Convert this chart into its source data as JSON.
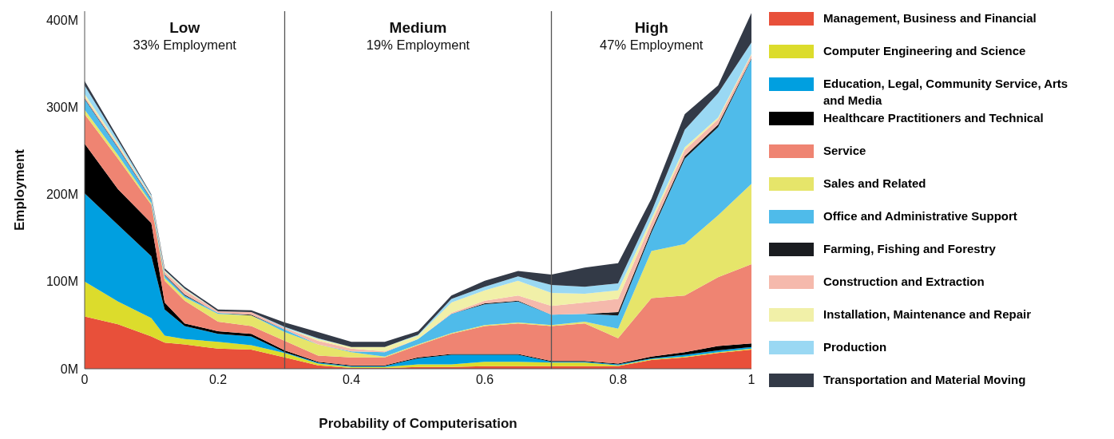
{
  "chart_data": {
    "type": "area",
    "stacked": true,
    "xlabel": "Probability of Computerisation",
    "ylabel": "Employment",
    "x": [
      0,
      0.05,
      0.1,
      0.12,
      0.15,
      0.2,
      0.25,
      0.3,
      0.35,
      0.4,
      0.45,
      0.5,
      0.55,
      0.6,
      0.65,
      0.7,
      0.75,
      0.8,
      0.85,
      0.9,
      0.95,
      1
    ],
    "series": [
      {
        "name": "Management, Business and Financial",
        "color": "#e8503a",
        "values": [
          60,
          51,
          37,
          30,
          28,
          23,
          22,
          13,
          4,
          1,
          1,
          2,
          2,
          3,
          3,
          3,
          3,
          3,
          10,
          13,
          18,
          22
        ]
      },
      {
        "name": "Computer Engineering and Science",
        "color": "#dcdc2c",
        "values": [
          40,
          26,
          21,
          8,
          6,
          8,
          5,
          5,
          2,
          1,
          1,
          3,
          3,
          5,
          5,
          4,
          4,
          1,
          1,
          1,
          1,
          1
        ]
      },
      {
        "name": "Education, Legal, Community Service, Arts and Media",
        "color": "#009fe0",
        "values": [
          101,
          88,
          71,
          30,
          15,
          9,
          10,
          1,
          1,
          1,
          1,
          7,
          11,
          8,
          8,
          1,
          1,
          1,
          1,
          2,
          2,
          2
        ]
      },
      {
        "name": "Healthcare Practitioners and Technical",
        "color": "#000000",
        "values": [
          57,
          41,
          38,
          8,
          3,
          3,
          3,
          2,
          1,
          1,
          1,
          1,
          1,
          1,
          1,
          1,
          1,
          1,
          2,
          3,
          5,
          4
        ]
      },
      {
        "name": "Service",
        "color": "#ef8472",
        "values": [
          34,
          35,
          21,
          25,
          26,
          11,
          9,
          11,
          7,
          9,
          9,
          14,
          23,
          32,
          35,
          40,
          43,
          29,
          67,
          65,
          79,
          91
        ]
      },
      {
        "name": "Sales and Related",
        "color": "#e6e56a",
        "values": [
          5,
          4,
          2,
          3,
          4,
          9,
          12,
          10,
          13,
          6,
          1,
          1,
          1,
          1,
          1,
          1,
          2,
          11,
          54,
          59,
          71,
          92
        ]
      },
      {
        "name": "Office and Administrative Support",
        "color": "#4fbbea",
        "values": [
          12,
          8,
          4,
          3,
          2,
          1,
          0,
          3,
          0,
          1,
          5,
          6,
          22,
          24,
          24,
          12,
          9,
          15,
          21,
          98,
          101,
          143
        ]
      },
      {
        "name": "Farming, Fishing and Forestry",
        "color": "#1a1c20",
        "values": [
          1,
          1,
          1,
          1,
          1,
          0,
          1,
          0,
          0,
          0,
          0,
          0,
          0,
          1,
          1,
          0,
          0,
          4,
          3,
          3,
          3,
          1
        ]
      },
      {
        "name": "Construction and Extraction",
        "color": "#f5b9ac",
        "values": [
          2,
          2,
          1,
          3,
          5,
          2,
          3,
          2,
          4,
          3,
          1,
          0,
          1,
          3,
          6,
          10,
          13,
          15,
          9,
          7,
          6,
          4
        ]
      },
      {
        "name": "Installation, Maintenance and Repair",
        "color": "#f1f0a8",
        "values": [
          3,
          2,
          1,
          1,
          1,
          0,
          0,
          0,
          2,
          2,
          5,
          4,
          12,
          12,
          17,
          15,
          10,
          10,
          4,
          3,
          2,
          1
        ]
      },
      {
        "name": "Production",
        "color": "#9ad8f3",
        "values": [
          10,
          4,
          2,
          1,
          1,
          0,
          0,
          1,
          1,
          0,
          0,
          1,
          4,
          4,
          5,
          9,
          8,
          8,
          8,
          20,
          28,
          13
        ]
      },
      {
        "name": "Transportation and Material Moving",
        "color": "#333a47",
        "values": [
          5,
          3,
          1,
          2,
          2,
          2,
          2,
          5,
          7,
          6,
          6,
          4,
          4,
          7,
          6,
          12,
          22,
          23,
          15,
          18,
          9,
          34
        ]
      }
    ],
    "xlim": [
      0,
      1
    ],
    "xticks": [
      0,
      0.2,
      0.4,
      0.6,
      0.8,
      1
    ],
    "ylim": [
      0,
      410
    ],
    "yticks": [
      {
        "value": 0,
        "label": "0M"
      },
      {
        "value": 100,
        "label": "100M"
      },
      {
        "value": 200,
        "label": "200M"
      },
      {
        "value": 300,
        "label": "300M"
      },
      {
        "value": 400,
        "label": "400M"
      }
    ],
    "ref_lines": [
      {
        "axis": "x",
        "value": 0.3,
        "color": "#555555"
      },
      {
        "axis": "x",
        "value": 0.7,
        "color": "#555555"
      }
    ],
    "annotations": [
      "Low",
      "33% Employment",
      "Medium",
      "19% Employment",
      "High",
      "47% Employment"
    ],
    "legend": "right",
    "grid": false
  }
}
